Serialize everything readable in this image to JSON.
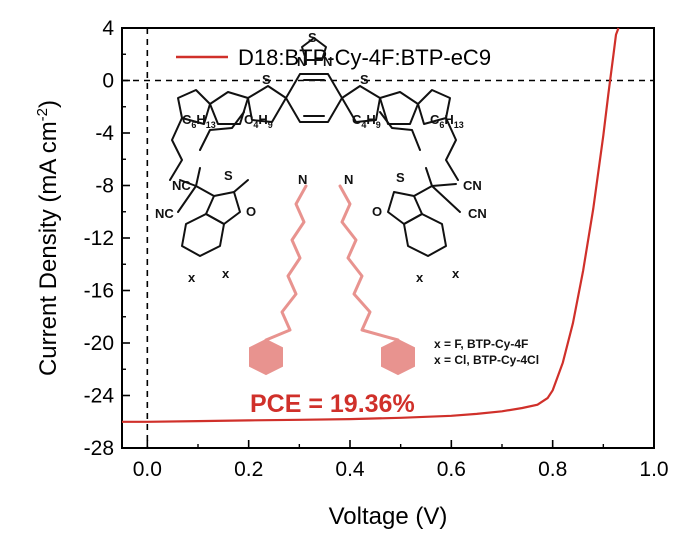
{
  "chart_data": {
    "type": "line",
    "xlabel": "Voltage (V)",
    "ylabel_main": "Current Density (mA cm",
    "ylabel_sup": "-2",
    "ylabel_end": ")",
    "xlim": [
      -0.05,
      1.0
    ],
    "ylim": [
      -28,
      4
    ],
    "xticks": [
      0.0,
      0.2,
      0.4,
      0.6,
      0.8,
      1.0
    ],
    "xtick_labels": [
      "0.0",
      "0.2",
      "0.4",
      "0.6",
      "0.8",
      "1.0"
    ],
    "yticks": [
      4,
      0,
      -4,
      -8,
      -12,
      -16,
      -20,
      -24,
      -28
    ],
    "ytick_labels": [
      "4",
      "0",
      "-4",
      "-8",
      "-12",
      "-16",
      "-20",
      "-24",
      "-28"
    ],
    "reference_lines": {
      "x": 0,
      "y": 0,
      "style": "dashed"
    },
    "grid": false,
    "legend_position": "top",
    "series": [
      {
        "name": "D18:BTP-Cy-4F:BTP-eC9",
        "color": "#d0302a",
        "x": [
          -0.05,
          0.0,
          0.1,
          0.2,
          0.3,
          0.4,
          0.5,
          0.6,
          0.65,
          0.7,
          0.74,
          0.77,
          0.79,
          0.8,
          0.82,
          0.84,
          0.86,
          0.88,
          0.9,
          0.91,
          0.92,
          0.925,
          0.93
        ],
        "y": [
          -26.0,
          -26.0,
          -25.95,
          -25.9,
          -25.85,
          -25.8,
          -25.7,
          -25.55,
          -25.4,
          -25.2,
          -24.95,
          -24.7,
          -24.2,
          -23.6,
          -21.5,
          -18.5,
          -14.5,
          -9.8,
          -4.2,
          -1.0,
          2.0,
          3.5,
          4.0
        ]
      }
    ],
    "annotations": [
      {
        "text": "PCE = 19.36%",
        "color": "#d0302a"
      }
    ]
  },
  "molecule": {
    "chain_left_main": "C",
    "chain_left_main_sub": "6",
    "chain_left_main_tail": "H",
    "chain_left_main_tail_sub": "13",
    "chain_left_branch": "C",
    "chain_left_branch_sub": "4",
    "chain_left_branch_tail": "H",
    "chain_left_branch_tail_sub": "9",
    "chain_right_branch": "C",
    "chain_right_branch_sub": "4",
    "chain_right_branch_tail": "H",
    "chain_right_branch_tail_sub": "9",
    "chain_right_main": "C",
    "chain_right_main_sub": "6",
    "chain_right_main_tail": "H",
    "chain_right_main_tail_sub": "13",
    "sulfur": "S",
    "nitrogen": "N",
    "oxygen": "O",
    "cyano": "NC",
    "cyano_r": "CN",
    "halogen": "x",
    "note_line1": "x = F, BTP-Cy-4F",
    "note_line2": "x = Cl, BTP-Cy-4Cl"
  }
}
